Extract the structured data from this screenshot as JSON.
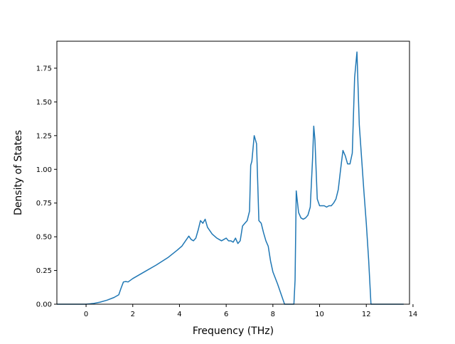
{
  "chart_data": {
    "type": "line",
    "title": "",
    "xlabel": "Frequency (THz)",
    "ylabel": "Density of States",
    "xlim": [
      -1.25,
      13.85
    ],
    "ylim": [
      0,
      1.95
    ],
    "xticks": [
      0,
      2,
      4,
      6,
      8,
      10,
      12,
      14
    ],
    "yticks": [
      0.0,
      0.25,
      0.5,
      0.75,
      1.0,
      1.25,
      1.5,
      1.75
    ],
    "xtick_labels": [
      "0",
      "2",
      "4",
      "6",
      "8",
      "10",
      "12",
      "14"
    ],
    "ytick_labels": [
      "0.00",
      "0.25",
      "0.50",
      "0.75",
      "1.00",
      "1.25",
      "1.50",
      "1.75"
    ],
    "grid": false,
    "legend": "none",
    "colors": {
      "line": "#1f77b4",
      "axes": "#000000",
      "background": "#ffffff"
    },
    "series": [
      {
        "x": [
          -1.25,
          -0.5,
          0.0,
          0.3,
          0.6,
          0.9,
          1.2,
          1.4,
          1.5,
          1.6,
          1.7,
          1.8,
          2.0,
          2.5,
          3.0,
          3.5,
          3.9,
          4.1,
          4.2,
          4.3,
          4.4,
          4.5,
          4.6,
          4.7,
          4.8,
          4.9,
          5.0,
          5.1,
          5.2,
          5.4,
          5.6,
          5.7,
          5.8,
          5.9,
          6.0,
          6.1,
          6.2,
          6.3,
          6.4,
          6.5,
          6.6,
          6.7,
          6.8,
          6.9,
          7.0,
          7.05,
          7.1,
          7.2,
          7.3,
          7.4,
          7.5,
          7.6,
          7.7,
          7.8,
          7.9,
          8.0,
          8.2,
          8.4,
          8.5,
          8.6,
          8.8,
          8.9,
          8.95,
          9.0,
          9.1,
          9.2,
          9.3,
          9.4,
          9.5,
          9.6,
          9.7,
          9.75,
          9.8,
          9.9,
          10.0,
          10.1,
          10.2,
          10.3,
          10.4,
          10.5,
          10.6,
          10.7,
          10.8,
          10.9,
          11.0,
          11.1,
          11.2,
          11.3,
          11.4,
          11.5,
          11.6,
          11.7,
          11.8,
          11.9,
          12.0,
          12.1,
          12.2,
          12.3,
          12.4,
          12.6,
          12.8,
          13.0,
          13.3,
          13.6
        ],
        "y": [
          0.0,
          0.0,
          0.0,
          0.005,
          0.015,
          0.03,
          0.05,
          0.07,
          0.12,
          0.165,
          0.168,
          0.165,
          0.19,
          0.24,
          0.29,
          0.345,
          0.4,
          0.43,
          0.455,
          0.48,
          0.505,
          0.48,
          0.47,
          0.49,
          0.55,
          0.62,
          0.6,
          0.63,
          0.57,
          0.52,
          0.49,
          0.48,
          0.47,
          0.48,
          0.49,
          0.47,
          0.47,
          0.46,
          0.49,
          0.45,
          0.47,
          0.58,
          0.6,
          0.62,
          0.69,
          1.03,
          1.06,
          1.25,
          1.19,
          0.62,
          0.6,
          0.53,
          0.47,
          0.43,
          0.32,
          0.24,
          0.15,
          0.05,
          0.0,
          0.0,
          0.0,
          0.0,
          0.18,
          0.84,
          0.68,
          0.64,
          0.63,
          0.64,
          0.66,
          0.72,
          1.08,
          1.32,
          1.22,
          0.78,
          0.73,
          0.73,
          0.73,
          0.72,
          0.73,
          0.73,
          0.75,
          0.78,
          0.85,
          1.0,
          1.14,
          1.1,
          1.04,
          1.04,
          1.12,
          1.68,
          1.87,
          1.33,
          1.08,
          0.83,
          0.6,
          0.33,
          0.0,
          0.0,
          0.0,
          0.0,
          0.0,
          0.0,
          0.0,
          0.0
        ]
      }
    ]
  }
}
